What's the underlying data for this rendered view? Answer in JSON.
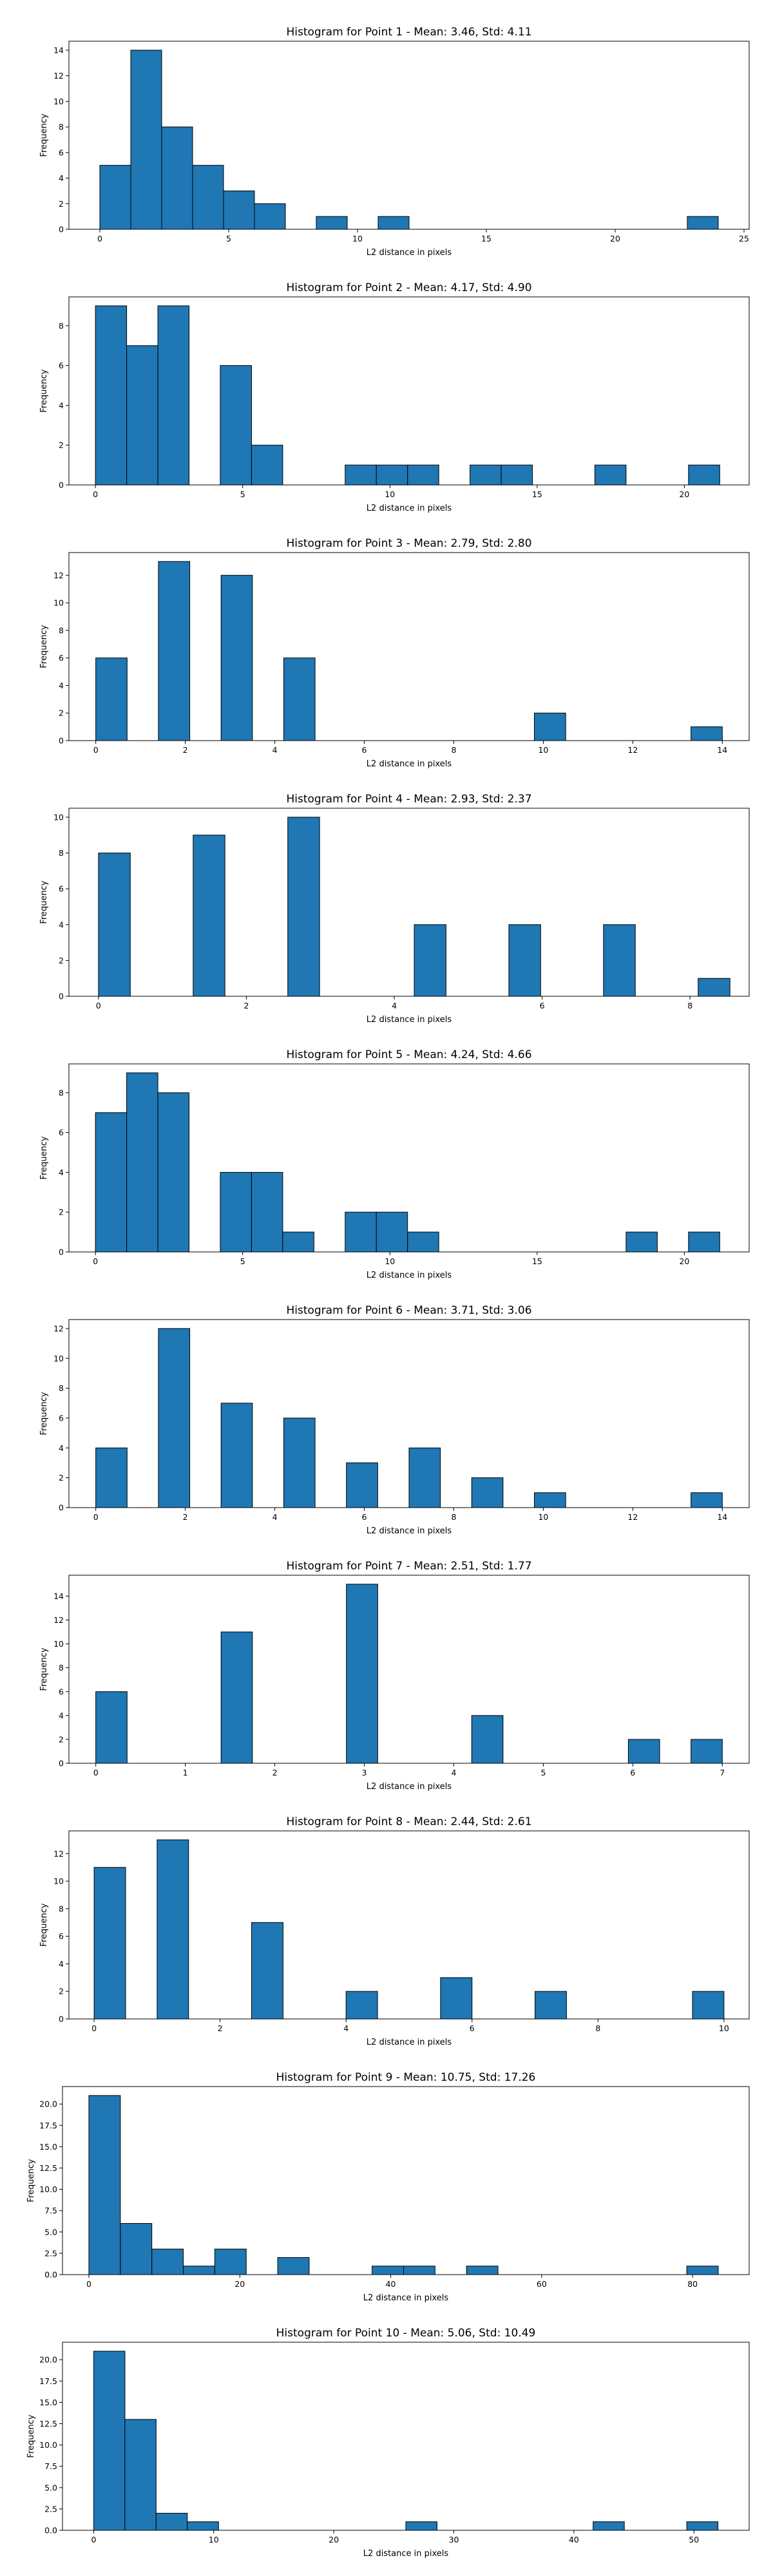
{
  "chart_data": [
    {
      "type": "bar",
      "title": "Histogram for Point 1 - Mean: 3.46, Std: 4.11",
      "xlabel": "L2 distance in pixels",
      "ylabel": "Frequency",
      "xlim": [
        -1.2,
        25.2
      ],
      "ylim": [
        0,
        14.7
      ],
      "xticks": [
        0,
        5,
        10,
        15,
        20,
        25
      ],
      "yticks": [
        0,
        2,
        4,
        6,
        8,
        10,
        12,
        14
      ],
      "bin_width": 1.2,
      "bins": [
        {
          "x0": 0.0,
          "count": 5
        },
        {
          "x0": 1.2,
          "count": 14
        },
        {
          "x0": 2.4,
          "count": 8
        },
        {
          "x0": 3.6,
          "count": 5
        },
        {
          "x0": 4.8,
          "count": 3
        },
        {
          "x0": 6.0,
          "count": 2
        },
        {
          "x0": 8.4,
          "count": 1
        },
        {
          "x0": 10.8,
          "count": 1
        },
        {
          "x0": 22.8,
          "count": 1
        }
      ]
    },
    {
      "type": "bar",
      "title": "Histogram for Point 2 - Mean: 4.17, Std: 4.90",
      "xlabel": "L2 distance in pixels",
      "ylabel": "Frequency",
      "xlim": [
        -0.9,
        22.2
      ],
      "ylim": [
        0,
        9.45
      ],
      "xticks": [
        0,
        5,
        10,
        15,
        20
      ],
      "yticks": [
        0,
        2,
        4,
        6,
        8
      ],
      "bin_width": 1.06,
      "bins": [
        {
          "x0": 0.0,
          "count": 9
        },
        {
          "x0": 1.06,
          "count": 7
        },
        {
          "x0": 2.12,
          "count": 9
        },
        {
          "x0": 4.24,
          "count": 6
        },
        {
          "x0": 5.3,
          "count": 2
        },
        {
          "x0": 8.48,
          "count": 1
        },
        {
          "x0": 9.54,
          "count": 1
        },
        {
          "x0": 10.6,
          "count": 1
        },
        {
          "x0": 12.72,
          "count": 1
        },
        {
          "x0": 13.78,
          "count": 1
        },
        {
          "x0": 16.96,
          "count": 1
        },
        {
          "x0": 20.14,
          "count": 1
        }
      ]
    },
    {
      "type": "bar",
      "title": "Histogram for Point 3 - Mean: 2.79, Std: 2.80",
      "xlabel": "L2 distance in pixels",
      "ylabel": "Frequency",
      "xlim": [
        -0.6,
        14.6
      ],
      "ylim": [
        0,
        13.65
      ],
      "xticks": [
        0,
        2,
        4,
        6,
        8,
        10,
        12,
        14
      ],
      "yticks": [
        0,
        2,
        4,
        6,
        8,
        10,
        12
      ],
      "bin_width": 0.7,
      "bins": [
        {
          "x0": 0.0,
          "count": 6
        },
        {
          "x0": 1.4,
          "count": 13
        },
        {
          "x0": 2.8,
          "count": 12
        },
        {
          "x0": 4.2,
          "count": 6
        },
        {
          "x0": 9.8,
          "count": 2
        },
        {
          "x0": 13.3,
          "count": 1
        }
      ]
    },
    {
      "type": "bar",
      "title": "Histogram for Point 4 - Mean: 2.93, Std: 2.37",
      "xlabel": "L2 distance in pixels",
      "ylabel": "Frequency",
      "xlim": [
        -0.4,
        8.8
      ],
      "ylim": [
        0,
        10.5
      ],
      "xticks": [
        0,
        2,
        4,
        6,
        8
      ],
      "yticks": [
        0,
        2,
        4,
        6,
        8,
        10
      ],
      "bin_width": 0.43,
      "bins": [
        {
          "x0": 0.0,
          "count": 8
        },
        {
          "x0": 1.28,
          "count": 9
        },
        {
          "x0": 2.56,
          "count": 10
        },
        {
          "x0": 4.27,
          "count": 4
        },
        {
          "x0": 5.55,
          "count": 4
        },
        {
          "x0": 6.83,
          "count": 4
        },
        {
          "x0": 8.11,
          "count": 1
        }
      ]
    },
    {
      "type": "bar",
      "title": "Histogram for Point 5 - Mean: 4.24, Std: 4.66",
      "xlabel": "L2 distance in pixels",
      "ylabel": "Frequency",
      "xlim": [
        -0.9,
        22.2
      ],
      "ylim": [
        0,
        9.45
      ],
      "xticks": [
        0,
        5,
        10,
        15,
        20
      ],
      "yticks": [
        0,
        2,
        4,
        6,
        8
      ],
      "bin_width": 1.06,
      "bins": [
        {
          "x0": 0.0,
          "count": 7
        },
        {
          "x0": 1.06,
          "count": 9
        },
        {
          "x0": 2.12,
          "count": 8
        },
        {
          "x0": 4.24,
          "count": 4
        },
        {
          "x0": 5.3,
          "count": 4
        },
        {
          "x0": 6.36,
          "count": 1
        },
        {
          "x0": 8.48,
          "count": 2
        },
        {
          "x0": 9.54,
          "count": 2
        },
        {
          "x0": 10.6,
          "count": 1
        },
        {
          "x0": 18.02,
          "count": 1
        },
        {
          "x0": 20.14,
          "count": 1
        }
      ]
    },
    {
      "type": "bar",
      "title": "Histogram for Point 6 - Mean: 3.71, Std: 3.06",
      "xlabel": "L2 distance in pixels",
      "ylabel": "Frequency",
      "xlim": [
        -0.6,
        14.6
      ],
      "ylim": [
        0,
        12.6
      ],
      "xticks": [
        0,
        2,
        4,
        6,
        8,
        10,
        12,
        14
      ],
      "yticks": [
        0,
        2,
        4,
        6,
        8,
        10,
        12
      ],
      "bin_width": 0.7,
      "bins": [
        {
          "x0": 0.0,
          "count": 4
        },
        {
          "x0": 1.4,
          "count": 12
        },
        {
          "x0": 2.8,
          "count": 7
        },
        {
          "x0": 4.2,
          "count": 6
        },
        {
          "x0": 5.6,
          "count": 3
        },
        {
          "x0": 7.0,
          "count": 4
        },
        {
          "x0": 8.4,
          "count": 2
        },
        {
          "x0": 9.8,
          "count": 1
        },
        {
          "x0": 13.3,
          "count": 1
        }
      ]
    },
    {
      "type": "bar",
      "title": "Histogram for Point 7 - Mean: 2.51, Std: 1.77",
      "xlabel": "L2 distance in pixels",
      "ylabel": "Frequency",
      "xlim": [
        -0.3,
        7.3
      ],
      "ylim": [
        0,
        15.75
      ],
      "xticks": [
        0,
        1,
        2,
        3,
        4,
        5,
        6,
        7
      ],
      "yticks": [
        0,
        2,
        4,
        6,
        8,
        10,
        12,
        14
      ],
      "bin_width": 0.35,
      "bins": [
        {
          "x0": 0.0,
          "count": 6
        },
        {
          "x0": 1.4,
          "count": 11
        },
        {
          "x0": 2.8,
          "count": 15
        },
        {
          "x0": 4.2,
          "count": 4
        },
        {
          "x0": 5.95,
          "count": 2
        },
        {
          "x0": 6.65,
          "count": 2
        }
      ]
    },
    {
      "type": "bar",
      "title": "Histogram for Point 8 - Mean: 2.44, Std: 2.61",
      "xlabel": "L2 distance in pixels",
      "ylabel": "Frequency",
      "xlim": [
        -0.4,
        10.4
      ],
      "ylim": [
        0,
        13.65
      ],
      "xticks": [
        0,
        2,
        4,
        6,
        8,
        10
      ],
      "yticks": [
        0,
        2,
        4,
        6,
        8,
        10,
        12
      ],
      "bin_width": 0.5,
      "bins": [
        {
          "x0": 0.0,
          "count": 11
        },
        {
          "x0": 1.0,
          "count": 13
        },
        {
          "x0": 2.5,
          "count": 7
        },
        {
          "x0": 4.0,
          "count": 2
        },
        {
          "x0": 5.5,
          "count": 3
        },
        {
          "x0": 7.0,
          "count": 2
        },
        {
          "x0": 9.5,
          "count": 2
        }
      ]
    },
    {
      "type": "bar",
      "title": "Histogram for Point 9 - Mean: 10.75, Std: 17.26",
      "xlabel": "L2 distance in pixels",
      "ylabel": "Frequency",
      "xlim": [
        -3.5,
        87.5
      ],
      "ylim": [
        0,
        22.05
      ],
      "xticks": [
        0,
        20,
        40,
        60,
        80
      ],
      "yticks": [
        0,
        2.5,
        5.0,
        7.5,
        10.0,
        12.5,
        15.0,
        17.5,
        20.0
      ],
      "ytick_labels": [
        "0.0",
        "2.5",
        "5.0",
        "7.5",
        "10.0",
        "12.5",
        "15.0",
        "17.5",
        "20.0"
      ],
      "bin_width": 4.17,
      "bins": [
        {
          "x0": 0.0,
          "count": 21
        },
        {
          "x0": 4.17,
          "count": 6
        },
        {
          "x0": 8.34,
          "count": 3
        },
        {
          "x0": 12.51,
          "count": 1
        },
        {
          "x0": 16.68,
          "count": 3
        },
        {
          "x0": 25.02,
          "count": 2
        },
        {
          "x0": 37.53,
          "count": 1
        },
        {
          "x0": 41.7,
          "count": 1
        },
        {
          "x0": 50.04,
          "count": 1
        },
        {
          "x0": 79.23,
          "count": 1
        }
      ]
    },
    {
      "type": "bar",
      "title": "Histogram for Point 10 - Mean: 5.06, Std: 10.49",
      "xlabel": "L2 distance in pixels",
      "ylabel": "Frequency",
      "xlim": [
        -2.6,
        54.6
      ],
      "ylim": [
        0,
        22.05
      ],
      "xticks": [
        0,
        10,
        20,
        30,
        40,
        50
      ],
      "yticks": [
        0,
        2.5,
        5.0,
        7.5,
        10.0,
        12.5,
        15.0,
        17.5,
        20.0
      ],
      "ytick_labels": [
        "0.0",
        "2.5",
        "5.0",
        "7.5",
        "10.0",
        "12.5",
        "15.0",
        "17.5",
        "20.0"
      ],
      "bin_width": 2.6,
      "bins": [
        {
          "x0": 0.0,
          "count": 21
        },
        {
          "x0": 2.6,
          "count": 13
        },
        {
          "x0": 5.2,
          "count": 2
        },
        {
          "x0": 7.8,
          "count": 1
        },
        {
          "x0": 26.0,
          "count": 1
        },
        {
          "x0": 41.6,
          "count": 1
        },
        {
          "x0": 49.4,
          "count": 1
        }
      ]
    }
  ]
}
